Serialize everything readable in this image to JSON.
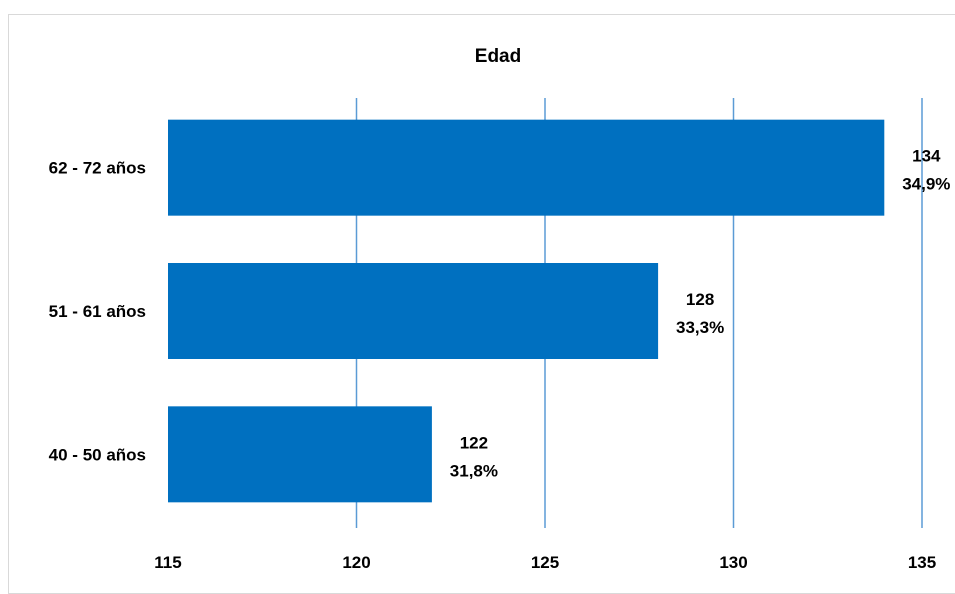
{
  "chart_data": {
    "type": "bar",
    "orientation": "horizontal",
    "title": "Edad",
    "xlabel": "",
    "ylabel": "",
    "categories": [
      "62 - 72 años",
      "51 - 61 años",
      "40 - 50 años"
    ],
    "values": [
      134,
      128,
      122
    ],
    "percent_labels": [
      "34,9%",
      "33,3%",
      "31,8%"
    ],
    "xlim": [
      115,
      135
    ],
    "x_ticks": [
      "115",
      "120",
      "125",
      "130",
      "135"
    ],
    "grid": "vertical",
    "legend": "none",
    "bar_color": "#0070c0",
    "grid_color": "#5b9bd5"
  }
}
